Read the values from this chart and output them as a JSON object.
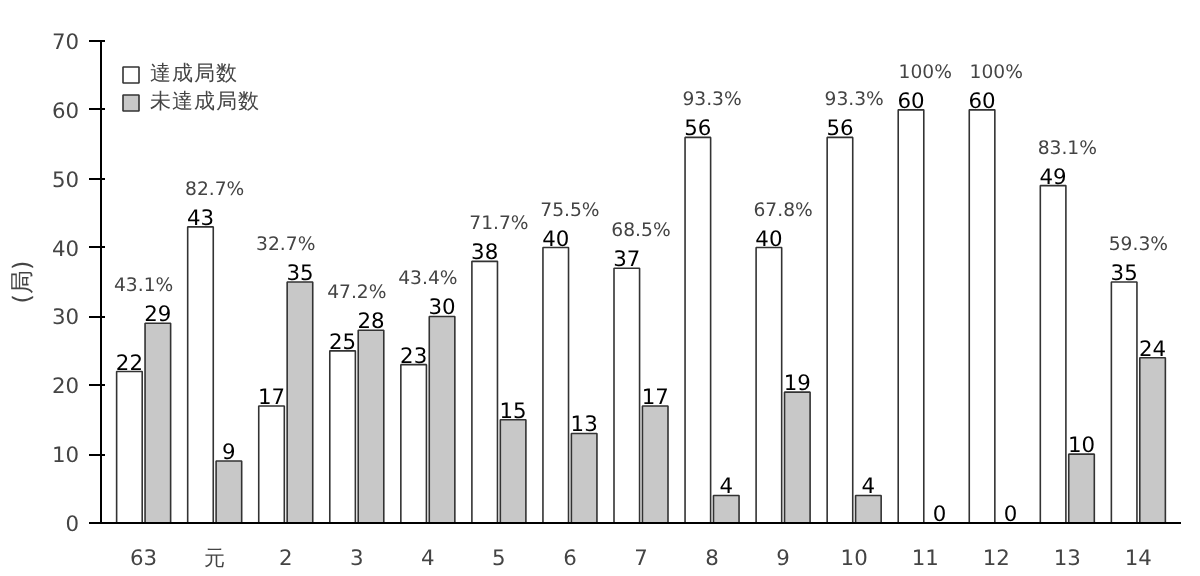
{
  "chart_data": {
    "type": "bar",
    "ylabel": "(局)",
    "categories": [
      "63",
      "元",
      "2",
      "3",
      "4",
      "5",
      "6",
      "7",
      "8",
      "9",
      "10",
      "11",
      "12",
      "13",
      "14"
    ],
    "series": [
      {
        "name": "達成局数",
        "color": "#ffffff",
        "values": [
          22,
          43,
          17,
          25,
          23,
          38,
          40,
          37,
          56,
          40,
          56,
          60,
          60,
          49,
          35
        ]
      },
      {
        "name": "未達成局数",
        "color": "#c8c8c8",
        "values": [
          29,
          9,
          35,
          28,
          30,
          15,
          13,
          17,
          4,
          19,
          4,
          0,
          0,
          10,
          24
        ]
      }
    ],
    "ylim": [
      0,
      70
    ],
    "yticks": [
      0,
      10,
      20,
      30,
      40,
      50,
      60,
      70
    ],
    "grid": false,
    "legend": "top left",
    "data_labels": true,
    "annotations": [
      {
        "text": "43.1%",
        "x": "63",
        "y": 29
      },
      {
        "text": "82.7%",
        "x": "元",
        "y": 43
      },
      {
        "text": "32.7%",
        "x": "2",
        "y": 35
      },
      {
        "text": "47.2%",
        "x": "3",
        "y": 28
      },
      {
        "text": "43.4%",
        "x": "4",
        "y": 30
      },
      {
        "text": "71.7%",
        "x": "5",
        "y": 38
      },
      {
        "text": "75.5%",
        "x": "6",
        "y": 40
      },
      {
        "text": "68.5%",
        "x": "7",
        "y": 37
      },
      {
        "text": "93.3%",
        "x": "8",
        "y": 56
      },
      {
        "text": "67.8%",
        "x": "9",
        "y": 40
      },
      {
        "text": "93.3%",
        "x": "10",
        "y": 56
      },
      {
        "text": "100%",
        "x": "11",
        "y": 60
      },
      {
        "text": "100%",
        "x": "12",
        "y": 60
      },
      {
        "text": "83.1%",
        "x": "13",
        "y": 49
      },
      {
        "text": "59.3%",
        "x": "14",
        "y": 35
      }
    ]
  }
}
